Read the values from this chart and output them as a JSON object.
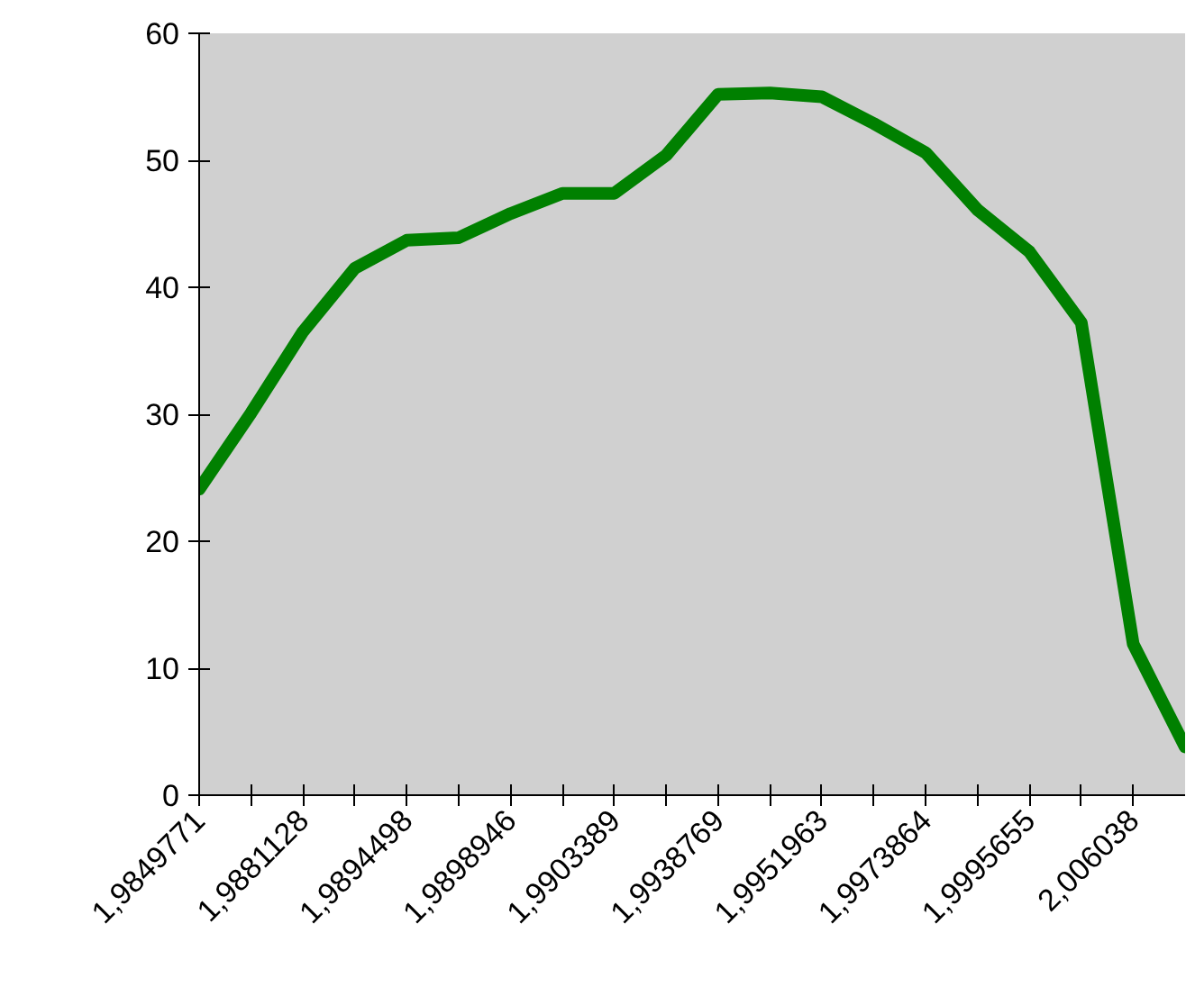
{
  "chart_data": {
    "type": "line",
    "categories": [
      "1,9849771",
      null,
      "1,9881128",
      null,
      "1,9894498",
      null,
      "1,9898946",
      null,
      "1,9903389",
      null,
      "1,9938769",
      null,
      "1,9951963",
      null,
      "1,9973864",
      null,
      "1,9995655",
      null,
      "2,006038",
      null
    ],
    "series": [
      {
        "color": "#008000",
        "values": [
          24.1,
          30.1,
          36.5,
          41.5,
          43.7,
          43.9,
          45.8,
          47.4,
          47.4,
          50.4,
          55.2,
          55.3,
          55.0,
          52.9,
          50.6,
          46.1,
          42.8,
          37.2,
          11.9,
          3.8
        ]
      }
    ],
    "ylim": [
      0,
      60
    ],
    "yticks": [
      0,
      10,
      20,
      30,
      40,
      50,
      60
    ],
    "grid": false,
    "marker": "none",
    "line_style": "solid"
  }
}
